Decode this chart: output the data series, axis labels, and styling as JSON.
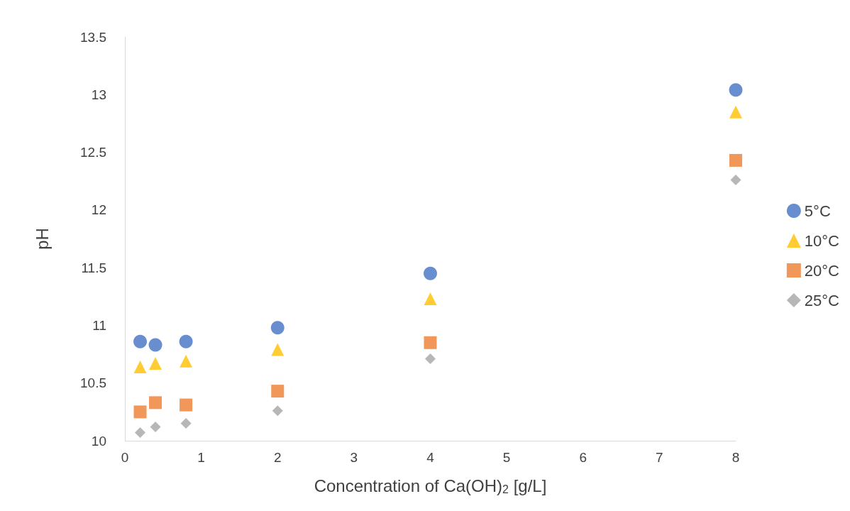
{
  "chart_data": {
    "type": "scatter",
    "xlabel": "Concentration of Ca(OH)$_{2}$ [g/L]",
    "ylabel": "pH",
    "xlim": [
      0,
      8
    ],
    "xticks": [
      0,
      1,
      2,
      3,
      4,
      5,
      6,
      7,
      8
    ],
    "ylim": [
      10,
      13.5
    ],
    "yticks": [
      10,
      10.5,
      11,
      11.5,
      12,
      12.5,
      13,
      13.5
    ],
    "grid": false,
    "legend": "right",
    "series": [
      {
        "name": "5°C",
        "color": "#4472c4",
        "marker": "circle",
        "x": [
          0.2,
          0.4,
          0.8,
          2,
          4,
          8
        ],
        "values": [
          10.86,
          10.83,
          10.86,
          10.98,
          11.45,
          13.04
        ]
      },
      {
        "name": "10°C",
        "color": "#ffc000",
        "marker": "triangle",
        "x": [
          0.2,
          0.4,
          0.8,
          2,
          4,
          8
        ],
        "values": [
          10.64,
          10.67,
          10.69,
          10.79,
          11.23,
          12.85
        ]
      },
      {
        "name": "20°C",
        "color": "#ed7d31",
        "marker": "square",
        "x": [
          0.2,
          0.4,
          0.8,
          2,
          4,
          8
        ],
        "values": [
          10.25,
          10.33,
          10.31,
          10.43,
          10.85,
          12.43
        ]
      },
      {
        "name": "25°C",
        "color": "#a5a5a5",
        "marker": "diamond",
        "x": [
          0.2,
          0.4,
          0.8,
          2,
          4,
          8
        ],
        "values": [
          10.07,
          10.12,
          10.15,
          10.26,
          10.71,
          12.26
        ]
      }
    ]
  }
}
